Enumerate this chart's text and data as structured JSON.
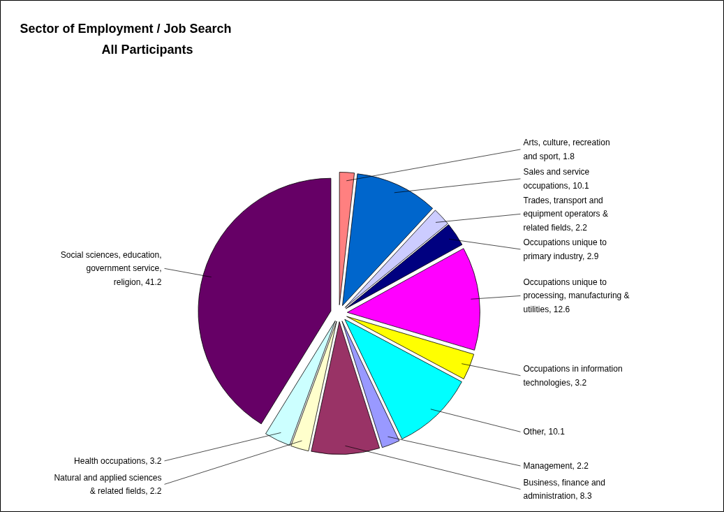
{
  "chart_data": {
    "type": "pie",
    "title": "Sector of Employment / Job Search",
    "subtitle": "All Participants",
    "categories": [
      "Arts, culture, recreation and sport, 1.8",
      "Sales and service occupations, 10.1",
      "Trades, transport and equipment operators & related fields, 2.2",
      "Occupations unique to primary industry, 2.9",
      "Occupations unique to processing, manufacturing & utilities, 12.6",
      "Occupations in information technologies, 3.2",
      "Other, 10.1",
      "Management, 2.2",
      "Business, finance and administration, 8.3",
      "Natural and applied sciences & related fields, 2.2",
      "Health occupations, 3.2",
      "Social sciences, education, government service, religion, 41.2"
    ],
    "values": [
      1.8,
      10.1,
      2.2,
      2.9,
      12.6,
      3.2,
      10.1,
      2.2,
      8.3,
      2.2,
      3.2,
      41.2
    ],
    "colors": [
      "#ff8080",
      "#0066cc",
      "#ccccff",
      "#000080",
      "#ff00ff",
      "#ffff00",
      "#00ffff",
      "#9999ff",
      "#993366",
      "#ffffcc",
      "#ccffff",
      "#660066"
    ]
  }
}
